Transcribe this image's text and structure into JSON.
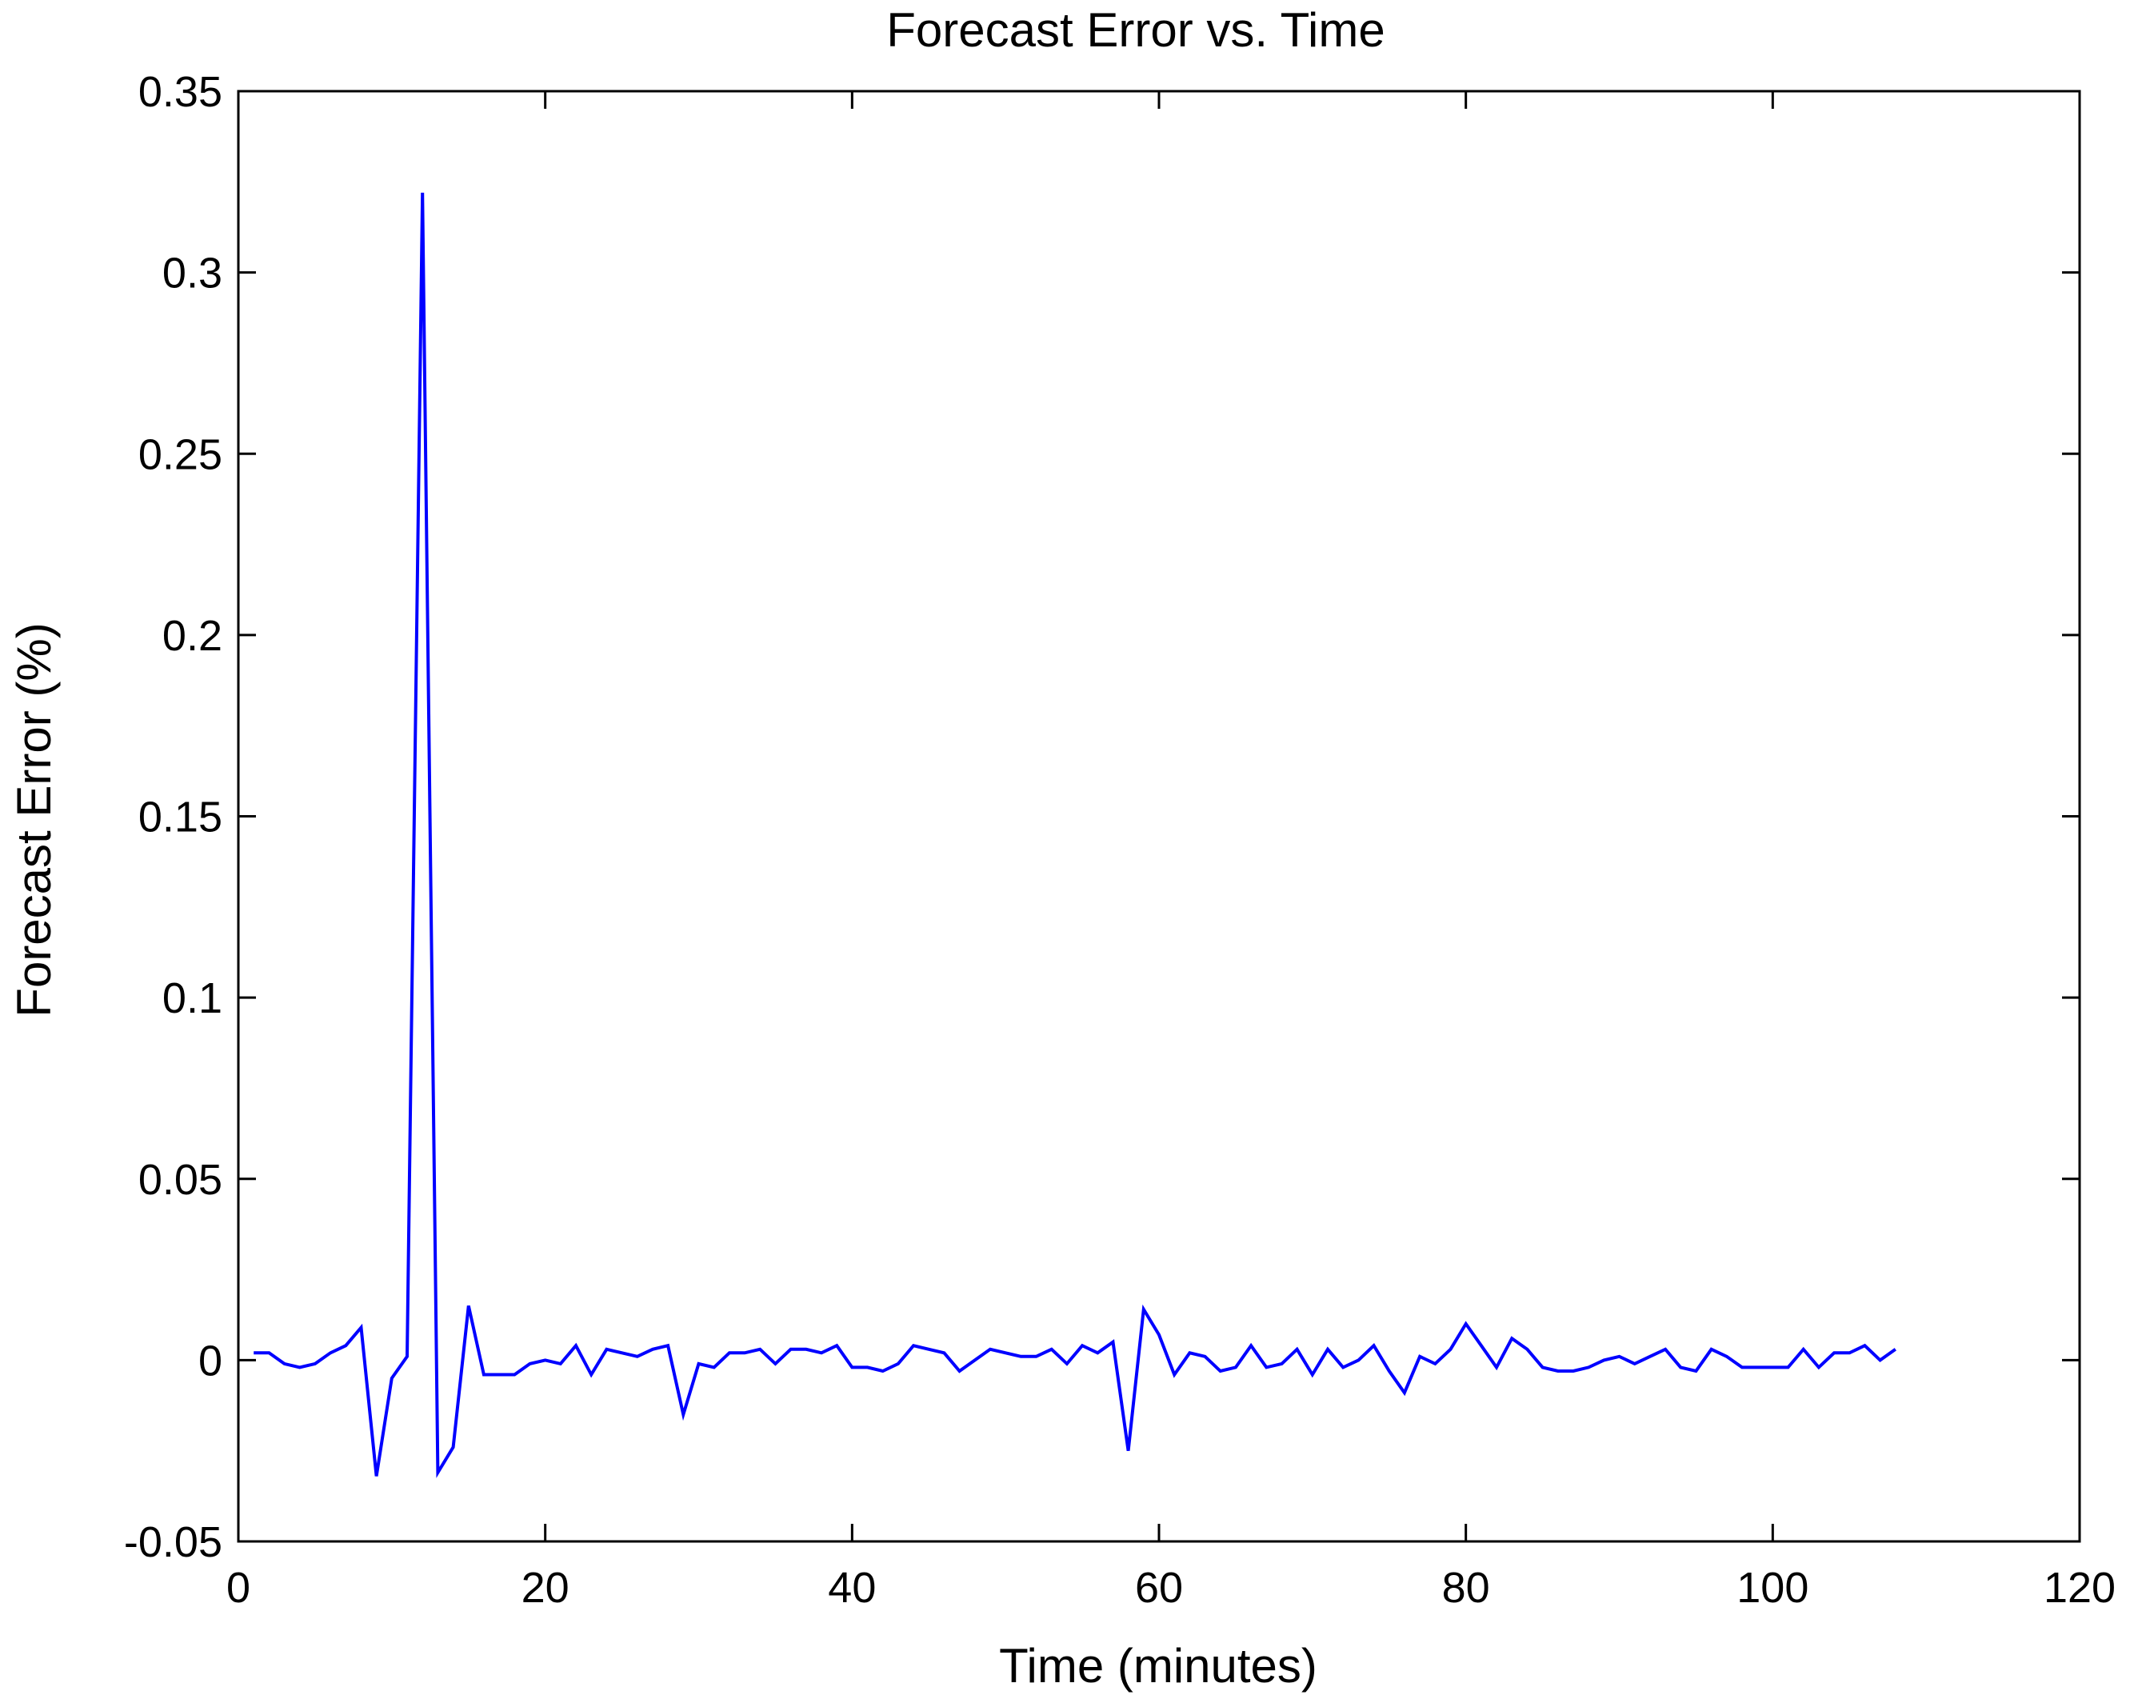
{
  "chart_data": {
    "type": "line",
    "title": "Forecast Error vs. Time",
    "xlabel": "Time (minutes)",
    "ylabel": "Forecast Error (%)",
    "xlim": [
      0,
      120
    ],
    "ylim": [
      -0.05,
      0.35
    ],
    "grid": false,
    "xticks": [
      0,
      20,
      40,
      60,
      80,
      100,
      120
    ],
    "xtick_labels": [
      "0",
      "20",
      "40",
      "60",
      "80",
      "100",
      "120"
    ],
    "yticks": [
      -0.05,
      0,
      0.05,
      0.1,
      0.15,
      0.2,
      0.25,
      0.3,
      0.35
    ],
    "ytick_labels": [
      "-0.05",
      "0",
      "0.05",
      "0.1",
      "0.15",
      "0.2",
      "0.25",
      "0.3",
      "0.35"
    ],
    "series": [
      {
        "color": "#0000ff",
        "x": [
          1,
          2,
          3,
          4,
          5,
          6,
          7,
          8,
          9,
          10,
          11,
          12,
          13,
          14,
          15,
          16,
          17,
          18,
          19,
          20,
          21,
          22,
          23,
          24,
          25,
          26,
          27,
          28,
          29,
          30,
          31,
          32,
          33,
          34,
          35,
          36,
          37,
          38,
          39,
          40,
          41,
          42,
          43,
          44,
          45,
          46,
          47,
          48,
          49,
          50,
          51,
          52,
          53,
          54,
          55,
          56,
          57,
          58,
          59,
          60,
          61,
          62,
          63,
          64,
          65,
          66,
          67,
          68,
          69,
          70,
          71,
          72,
          73,
          74,
          75,
          76,
          77,
          78,
          79,
          80,
          81,
          82,
          83,
          84,
          85,
          86,
          87,
          88,
          89,
          90,
          91,
          92,
          93,
          94,
          95,
          96,
          97,
          98,
          99,
          100,
          101,
          102,
          103,
          104,
          105,
          106,
          107,
          108
        ],
        "y": [
          0.002,
          0.002,
          -0.001,
          -0.002,
          -0.001,
          0.002,
          0.004,
          0.009,
          -0.032,
          -0.005,
          0.001,
          0.322,
          -0.031,
          -0.024,
          0.015,
          -0.004,
          -0.004,
          -0.004,
          -0.001,
          0.0,
          -0.001,
          0.004,
          -0.004,
          0.003,
          0.002,
          0.001,
          0.003,
          0.004,
          -0.015,
          -0.001,
          -0.002,
          0.002,
          0.002,
          0.003,
          -0.001,
          0.003,
          0.003,
          0.002,
          0.004,
          -0.002,
          -0.002,
          -0.003,
          -0.001,
          0.004,
          0.003,
          0.002,
          -0.003,
          0.0,
          0.003,
          0.002,
          0.001,
          0.001,
          0.003,
          -0.001,
          0.004,
          0.002,
          0.005,
          -0.025,
          0.014,
          0.007,
          -0.004,
          0.002,
          0.001,
          -0.003,
          -0.002,
          0.004,
          -0.002,
          -0.001,
          0.003,
          -0.004,
          0.003,
          -0.002,
          0.0,
          0.004,
          -0.003,
          -0.009,
          0.001,
          -0.001,
          0.003,
          0.01,
          0.004,
          -0.002,
          0.006,
          0.003,
          -0.002,
          -0.003,
          -0.003,
          -0.002,
          0.0,
          0.001,
          -0.001,
          0.001,
          0.003,
          -0.002,
          -0.003,
          0.003,
          0.001,
          -0.002,
          -0.002,
          -0.002,
          -0.002,
          0.003,
          -0.002,
          0.002,
          0.002,
          0.004,
          0.0,
          0.003
        ]
      }
    ]
  }
}
